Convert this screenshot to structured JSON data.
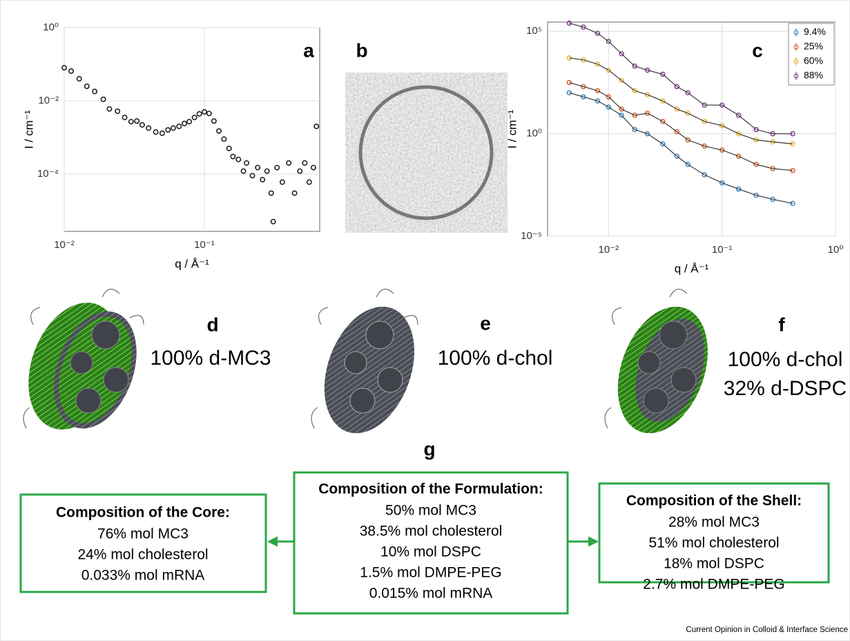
{
  "chart_data": [
    {
      "type": "scatter",
      "panel": "a",
      "x_label": "q / Å⁻¹",
      "y_label": "I / cm⁻¹",
      "xscale": "log",
      "yscale": "log",
      "grid": true,
      "color": "#222222",
      "xlim": [
        0.01,
        0.665
      ],
      "ylim": [
        2.7e-06,
        1
      ],
      "xticks": [
        {
          "value": 0.01,
          "label": "10⁻²"
        },
        {
          "value": 0.1,
          "label": "10⁻¹"
        }
      ],
      "yticks": [
        {
          "value": 1,
          "label": "10⁰"
        },
        {
          "value": 0.01,
          "label": "10⁻²"
        },
        {
          "value": 0.0001,
          "label": "10⁻⁴"
        }
      ],
      "x": [
        0.01,
        0.0112,
        0.0128,
        0.0145,
        0.0165,
        0.019,
        0.021,
        0.024,
        0.027,
        0.03,
        0.033,
        0.036,
        0.04,
        0.045,
        0.05,
        0.055,
        0.06,
        0.066,
        0.072,
        0.078,
        0.085,
        0.092,
        0.1,
        0.108,
        0.117,
        0.127,
        0.138,
        0.15,
        0.16,
        0.175,
        0.19,
        0.2,
        0.22,
        0.24,
        0.26,
        0.28,
        0.3,
        0.33,
        0.36,
        0.4,
        0.44,
        0.48,
        0.52,
        0.56,
        0.6,
        0.63,
        0.31
      ],
      "values": [
        0.08,
        0.065,
        0.04,
        0.025,
        0.018,
        0.011,
        0.006,
        0.0052,
        0.0035,
        0.0027,
        0.0028,
        0.0022,
        0.0018,
        0.0014,
        0.0013,
        0.0016,
        0.0018,
        0.002,
        0.0024,
        0.0027,
        0.0035,
        0.0044,
        0.005,
        0.0045,
        0.0028,
        0.0015,
        0.0009,
        0.0005,
        0.0003,
        0.00025,
        0.00012,
        0.0002,
        9e-05,
        0.00015,
        7e-05,
        0.00012,
        3e-05,
        0.00015,
        6e-05,
        0.0002,
        3e-05,
        0.00012,
        0.0002,
        6e-05,
        0.00015,
        0.002,
        5e-06
      ]
    },
    {
      "type": "line",
      "panel": "c",
      "x_label": "q / Å⁻¹",
      "y_label": "I / cm⁻¹",
      "xscale": "log",
      "yscale": "log",
      "grid": true,
      "legend": "top-right",
      "line_color": "#444444",
      "xlim": [
        0.0029,
        1
      ],
      "ylim": [
        1e-05,
        280000
      ],
      "xticks": [
        {
          "value": 0.01,
          "label": "10⁻²"
        },
        {
          "value": 0.1,
          "label": "10⁻¹"
        },
        {
          "value": 1,
          "label": "10⁰"
        }
      ],
      "yticks": [
        {
          "value": 1e-05,
          "label": "10⁻⁵"
        },
        {
          "value": 1,
          "label": "10⁰"
        },
        {
          "value": 100000,
          "label": "10⁵"
        }
      ],
      "x": [
        0.0045,
        0.006,
        0.008,
        0.01,
        0.013,
        0.017,
        0.022,
        0.03,
        0.04,
        0.05,
        0.07,
        0.1,
        0.14,
        0.2,
        0.28,
        0.42
      ],
      "series": [
        {
          "name": "9.4%",
          "color": "#2f7fc1",
          "values": [
            100,
            63,
            40,
            20,
            8,
            1.6,
            1,
            0.32,
            0.08,
            0.032,
            0.01,
            0.004,
            0.002,
            0.001,
            0.00063,
            0.0004
          ]
        },
        {
          "name": "25%",
          "color": "#d95319",
          "values": [
            316,
            200,
            126,
            63,
            16,
            8,
            10,
            4,
            1.26,
            0.5,
            0.25,
            0.16,
            0.08,
            0.032,
            0.02,
            0.016
          ]
        },
        {
          "name": "60%",
          "color": "#edb120",
          "values": [
            5000,
            4000,
            2500,
            1260,
            400,
            126,
            80,
            40,
            16,
            10,
            4,
            2.5,
            1,
            0.5,
            0.4,
            0.32
          ]
        },
        {
          "name": "88%",
          "color": "#7e2f8e",
          "values": [
            250000,
            160000,
            80000,
            32000,
            8000,
            2000,
            1260,
            800,
            200,
            100,
            25,
            25,
            8,
            1.6,
            1,
            1
          ]
        }
      ]
    }
  ],
  "panel_b": "b",
  "structures": [
    {
      "panel": "d",
      "lines": [
        "100% d-MC3"
      ]
    },
    {
      "panel": "e",
      "lines": [
        "100% d-chol"
      ]
    },
    {
      "panel": "f",
      "lines": [
        "100% d-chol",
        "32% d-DSPC"
      ]
    }
  ],
  "panel_g": "g",
  "boxes": [
    {
      "title": "Composition of the Core:",
      "lines": [
        "76% mol MC3",
        "24% mol cholesterol",
        "0.033% mol mRNA"
      ]
    },
    {
      "title": "Composition of the Formulation:",
      "lines": [
        "50% mol MC3",
        "38.5% mol cholesterol",
        "10% mol DSPC",
        "1.5% mol DMPE-PEG",
        "0.015% mol mRNA"
      ]
    },
    {
      "title": "Composition of the Shell:",
      "lines": [
        "28% mol MC3",
        "51% mol cholesterol",
        "18% mol DSPC",
        "2.7% mol DMPE-PEG"
      ]
    }
  ],
  "footer": "Current Opinion in Colloid & Interface Science"
}
